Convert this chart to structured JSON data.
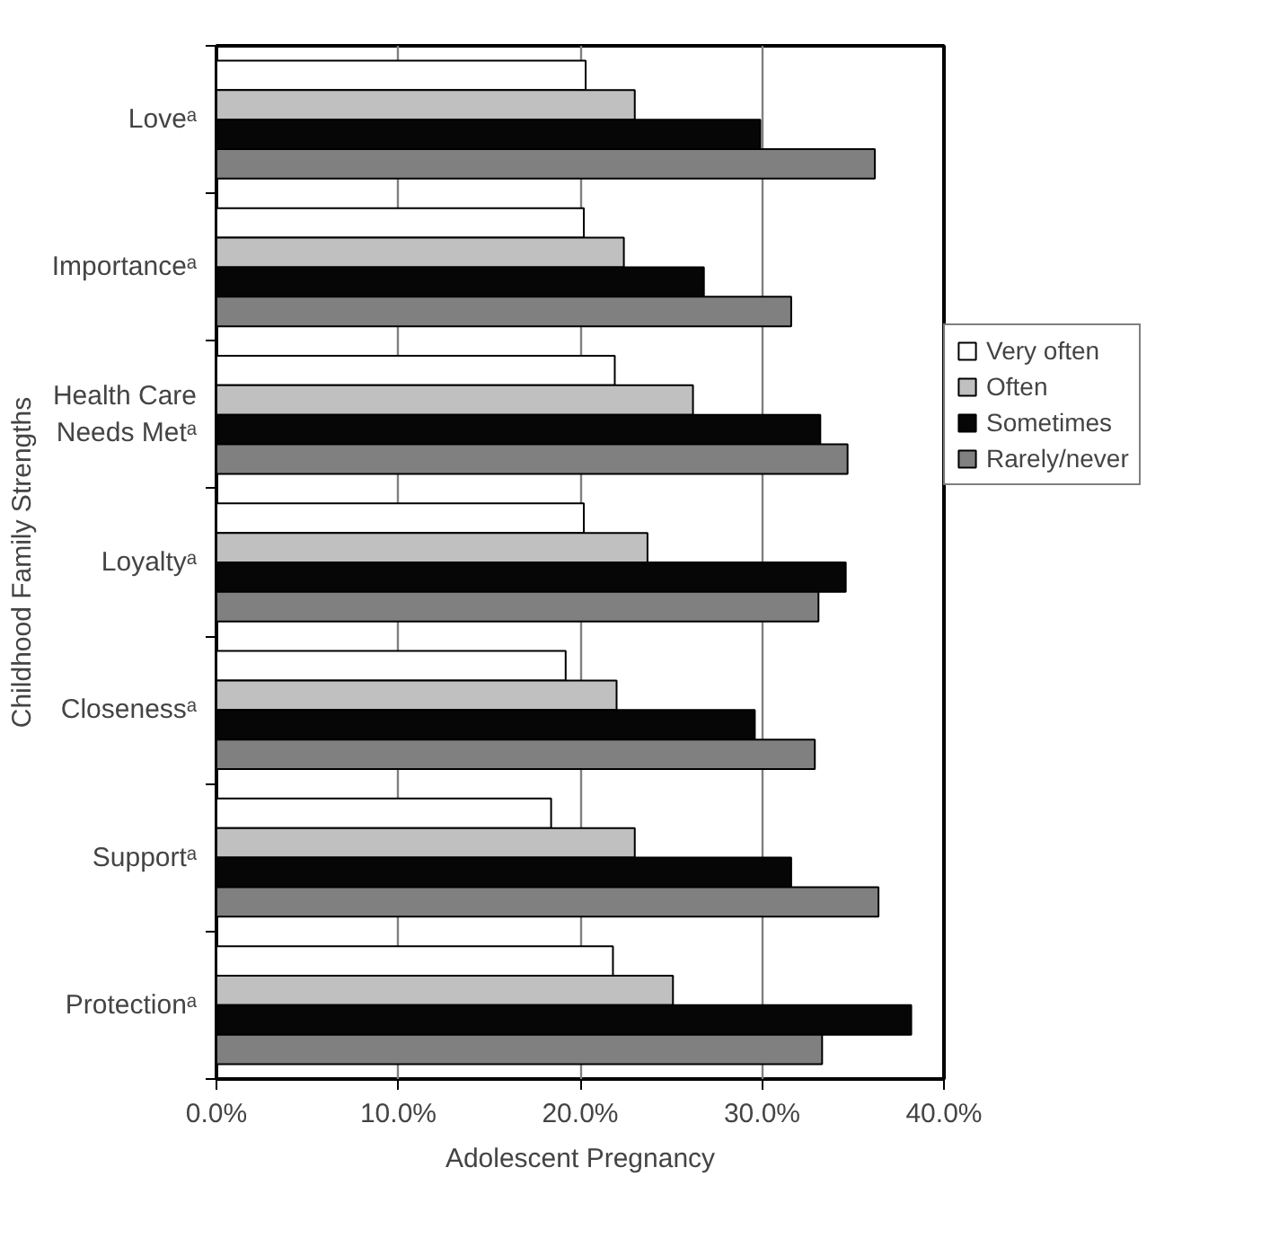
{
  "chart_data": {
    "type": "bar",
    "orientation": "horizontal",
    "xlabel": "Adolescent Pregnancy",
    "ylabel": "Childhood Family Strengths",
    "categories": [
      "Loveᵃ",
      "Importanceᵃ",
      "Health Care Needs Metᵃ",
      "Loyaltyᵃ",
      "Closenessᵃ",
      "Supportᵃ",
      "Protectionᵃ"
    ],
    "series": [
      {
        "name": "Very often",
        "color": "#ffffff",
        "values": [
          20.3,
          20.2,
          21.9,
          20.2,
          19.2,
          18.4,
          21.8
        ]
      },
      {
        "name": "Often",
        "color": "#c0c0c0",
        "values": [
          23.0,
          22.4,
          26.2,
          23.7,
          22.0,
          23.0,
          25.1
        ]
      },
      {
        "name": "Sometimes",
        "color": "#060606",
        "values": [
          29.9,
          26.8,
          33.2,
          34.6,
          29.6,
          31.6,
          38.2
        ]
      },
      {
        "name": "Rarely/never",
        "color": "#808080",
        "values": [
          36.2,
          31.6,
          34.7,
          33.1,
          32.9,
          36.4,
          33.3
        ]
      }
    ],
    "xlim": [
      0,
      40
    ],
    "xticks": [
      {
        "value": 0,
        "label": "0.0%"
      },
      {
        "value": 10,
        "label": "10.0%"
      },
      {
        "value": 20,
        "label": "20.0%"
      },
      {
        "value": 30,
        "label": "30.0%"
      },
      {
        "value": 40,
        "label": "40.0%"
      }
    ],
    "grid": "x",
    "legend": "right"
  }
}
